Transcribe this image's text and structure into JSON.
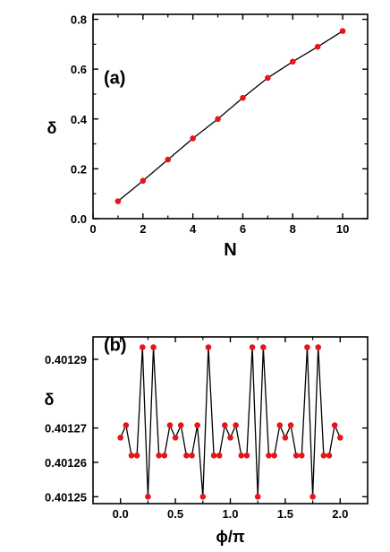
{
  "colors": {
    "line": "#000000",
    "marker": "#e8141a",
    "axes": "#000000",
    "background": "#ffffff"
  },
  "chart_data": [
    {
      "type": "line",
      "panel_label": "(a)",
      "xlabel": "N",
      "ylabel": "δ",
      "xlim": [
        0,
        11
      ],
      "ylim": [
        0.0,
        0.82
      ],
      "xticks": [
        0,
        2,
        4,
        6,
        8,
        10
      ],
      "xtick_labels": [
        "0",
        "2",
        "4",
        "6",
        "8",
        "10"
      ],
      "yticks": [
        0.0,
        0.2,
        0.4,
        0.6,
        0.8
      ],
      "ytick_labels": [
        "0.0",
        "0.2",
        "0.4",
        "0.6",
        "0.8"
      ],
      "grid": false,
      "x": [
        1,
        2,
        3,
        4,
        5,
        6,
        7,
        8,
        9,
        10
      ],
      "y": [
        0.07,
        0.152,
        0.237,
        0.322,
        0.4,
        0.485,
        0.565,
        0.63,
        0.69,
        0.753
      ]
    },
    {
      "type": "line",
      "panel_label": "(b)",
      "xlabel": "ϕ/π",
      "ylabel": "δ",
      "xlim": [
        -0.25,
        2.25
      ],
      "ylim": [
        0.401248,
        0.4012965
      ],
      "xticks": [
        0.0,
        0.5,
        1.0,
        1.5,
        2.0
      ],
      "xtick_labels": [
        "0.0",
        "0.5",
        "1.0",
        "1.5",
        "2.0"
      ],
      "yticks": [
        0.40125,
        0.40126,
        0.40127,
        0.40129
      ],
      "ytick_labels": [
        "0.40125",
        "0.40126",
        "0.40127",
        "0.40129"
      ],
      "grid": false,
      "x": [
        0.0,
        0.05,
        0.1,
        0.15,
        0.2,
        0.25,
        0.3,
        0.35,
        0.4,
        0.45,
        0.5,
        0.55,
        0.6,
        0.65,
        0.7,
        0.75,
        0.8,
        0.85,
        0.9,
        0.95,
        1.0,
        1.05,
        1.1,
        1.15,
        1.2,
        1.25,
        1.3,
        1.35,
        1.4,
        1.45,
        1.5,
        1.55,
        1.6,
        1.65,
        1.7,
        1.75,
        1.8,
        1.85,
        1.9,
        1.95,
        2.0
      ],
      "y": [
        0.4012672,
        0.4012708,
        0.401262,
        0.401262,
        0.4012935,
        0.40125,
        0.4012935,
        0.401262,
        0.401262,
        0.4012708,
        0.4012672,
        0.4012708,
        0.401262,
        0.401262,
        0.4012708,
        0.40125,
        0.4012935,
        0.401262,
        0.401262,
        0.4012708,
        0.4012672,
        0.4012708,
        0.401262,
        0.401262,
        0.4012935,
        0.40125,
        0.4012935,
        0.401262,
        0.401262,
        0.4012708,
        0.4012672,
        0.4012708,
        0.401262,
        0.401262,
        0.4012935,
        0.40125,
        0.4012935,
        0.401262,
        0.401262,
        0.4012708,
        0.4012672
      ]
    }
  ]
}
